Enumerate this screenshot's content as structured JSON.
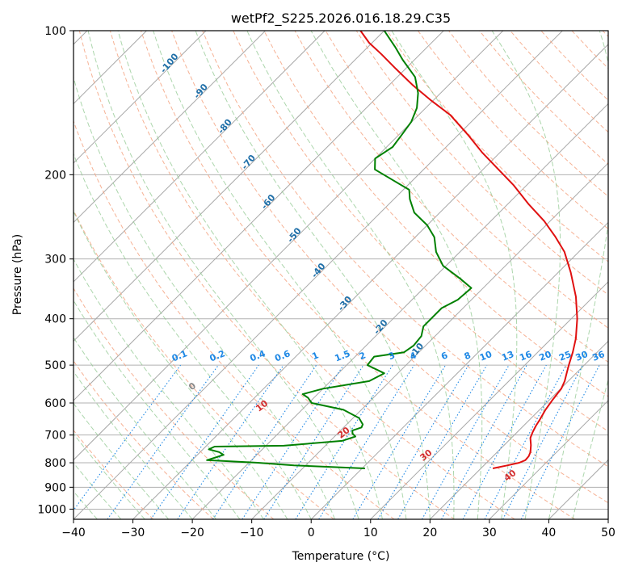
{
  "chart_data": {
    "type": "line",
    "title": "wetPf2_S225.2026.016.18.29.C35",
    "xlabel": "Temperature (°C)",
    "ylabel": "Pressure (hPa)",
    "xlim": [
      -40,
      50
    ],
    "ylim": [
      1050,
      100
    ],
    "y_scale": "log",
    "skew": true,
    "grid": true,
    "x_ticks": [
      "−40",
      "−30",
      "−20",
      "−10",
      "0",
      "10",
      "20",
      "30",
      "40",
      "50"
    ],
    "y_ticks": [
      "100",
      "200",
      "300",
      "400",
      "500",
      "600",
      "700",
      "800",
      "900",
      "1000"
    ],
    "series": [
      {
        "color": "#e01010",
        "values": [
          [
            822,
            22.0
          ],
          [
            810,
            24.0
          ],
          [
            800,
            25.5
          ],
          [
            790,
            26.1
          ],
          [
            775,
            26.0
          ],
          [
            760,
            25.6
          ],
          [
            735,
            24.5
          ],
          [
            710,
            23.2
          ],
          [
            690,
            22.6
          ],
          [
            670,
            22.1
          ],
          [
            650,
            21.7
          ],
          [
            620,
            21.0
          ],
          [
            590,
            20.5
          ],
          [
            560,
            20.1
          ],
          [
            540,
            19.4
          ],
          [
            520,
            18.4
          ],
          [
            500,
            17.4
          ],
          [
            470,
            15.9
          ],
          [
            440,
            14.1
          ],
          [
            400,
            11.0
          ],
          [
            360,
            7.1
          ],
          [
            320,
            2.1
          ],
          [
            290,
            -2.4
          ],
          [
            270,
            -6.4
          ],
          [
            250,
            -11.0
          ],
          [
            230,
            -16.6
          ],
          [
            210,
            -22.3
          ],
          [
            195,
            -27.4
          ],
          [
            180,
            -32.9
          ],
          [
            165,
            -38.4
          ],
          [
            150,
            -44.7
          ],
          [
            140,
            -50.3
          ],
          [
            130,
            -56.0
          ],
          [
            120,
            -61.7
          ],
          [
            112,
            -66.5
          ],
          [
            106,
            -70.5
          ],
          [
            100,
            -74.0
          ]
        ]
      },
      {
        "color": "#008000",
        "values": [
          [
            822,
            0.5
          ],
          [
            810,
            -12.0
          ],
          [
            800,
            -18.5
          ],
          [
            790,
            -27.5
          ],
          [
            780,
            -26.5
          ],
          [
            770,
            -25.6
          ],
          [
            760,
            -26.8
          ],
          [
            750,
            -29.0
          ],
          [
            740,
            -28.5
          ],
          [
            737,
            -17.0
          ],
          [
            720,
            -8.0
          ],
          [
            705,
            -6.5
          ],
          [
            695,
            -7.5
          ],
          [
            685,
            -8.0
          ],
          [
            675,
            -7.0
          ],
          [
            665,
            -7.3
          ],
          [
            645,
            -9.0
          ],
          [
            620,
            -13.0
          ],
          [
            600,
            -19.5
          ],
          [
            585,
            -21.0
          ],
          [
            575,
            -22.5
          ],
          [
            560,
            -20.0
          ],
          [
            540,
            -13.5
          ],
          [
            520,
            -12.3
          ],
          [
            500,
            -16.5
          ],
          [
            480,
            -16.8
          ],
          [
            470,
            -12.5
          ],
          [
            455,
            -12.0
          ],
          [
            435,
            -12.3
          ],
          [
            415,
            -13.6
          ],
          [
            380,
            -13.6
          ],
          [
            365,
            -12.3
          ],
          [
            345,
            -12.0
          ],
          [
            330,
            -15.4
          ],
          [
            310,
            -20.5
          ],
          [
            290,
            -24.0
          ],
          [
            270,
            -26.8
          ],
          [
            255,
            -30.0
          ],
          [
            240,
            -34.3
          ],
          [
            225,
            -37.3
          ],
          [
            215,
            -39.0
          ],
          [
            205,
            -43.5
          ],
          [
            195,
            -48.2
          ],
          [
            185,
            -50.0
          ],
          [
            175,
            -49.0
          ],
          [
            165,
            -49.5
          ],
          [
            155,
            -50.1
          ],
          [
            145,
            -51.5
          ],
          [
            135,
            -53.8
          ],
          [
            125,
            -57.0
          ],
          [
            115,
            -62.0
          ],
          [
            108,
            -65.5
          ],
          [
            100,
            -70.0
          ]
        ]
      }
    ],
    "dry_adiabat_labels": [
      "0",
      "10",
      "20",
      "30",
      "40"
    ],
    "moist_adiabat_labels": [
      "-100",
      "-90",
      "-80",
      "-70",
      "-60",
      "-50",
      "-40",
      "-30",
      "-20",
      "-10"
    ],
    "mixing_ratio_labels": [
      "0.1",
      "0.2",
      "0.4",
      "0.6",
      "1",
      "1.5",
      "2",
      "3",
      "4",
      "6",
      "8",
      "10",
      "13",
      "16",
      "20",
      "25",
      "30",
      "36"
    ]
  }
}
